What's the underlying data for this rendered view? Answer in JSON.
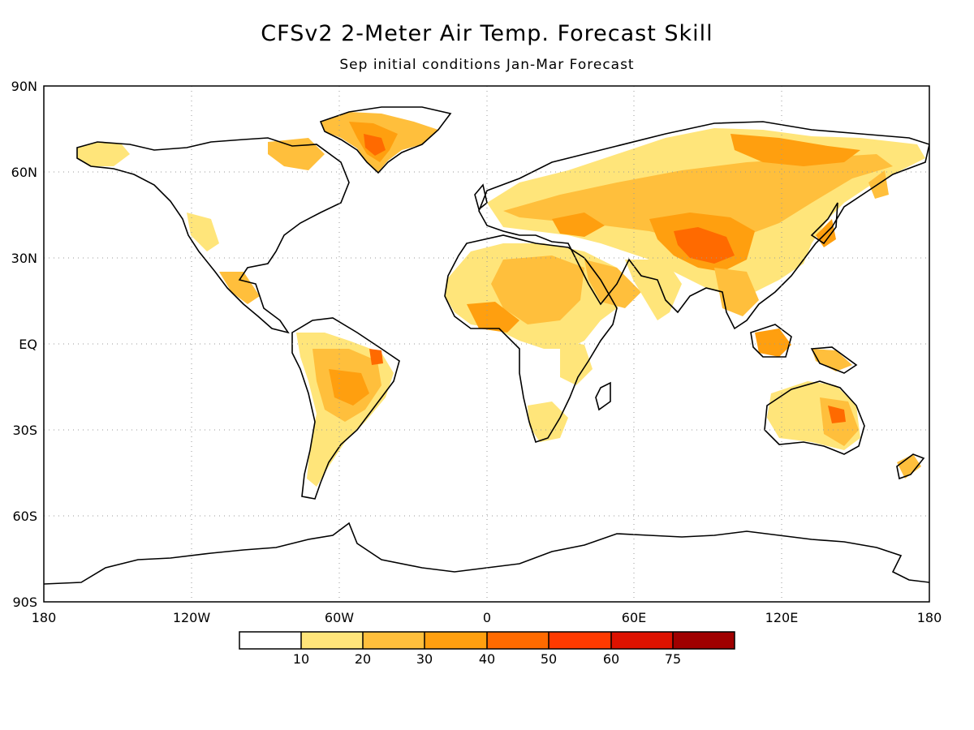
{
  "title": "CFSv2 2-Meter Air Temp. Forecast Skill",
  "subtitle": "Sep initial conditions  Jan-Mar Forecast",
  "map": {
    "lat_labels": [
      "90N",
      "60N",
      "30N",
      "EQ",
      "30S",
      "60S",
      "90S"
    ],
    "lon_labels": [
      "180",
      "120W",
      "60W",
      "0",
      "60E",
      "120E",
      "180"
    ]
  },
  "colorbar": {
    "labels": [
      "10",
      "20",
      "30",
      "40",
      "50",
      "60",
      "75"
    ],
    "colors": [
      "#ffffff",
      "#ffe57a",
      "#ffbf3c",
      "#ff9f0f",
      "#ff6a00",
      "#ff3a00",
      "#dd1200",
      "#a00000"
    ]
  },
  "palette": {
    "light": "#ffe57a",
    "mid": "#ffbf3c",
    "orange": "#ff9f0f",
    "dark": "#ff6a00",
    "red": "#ff3a00"
  }
}
